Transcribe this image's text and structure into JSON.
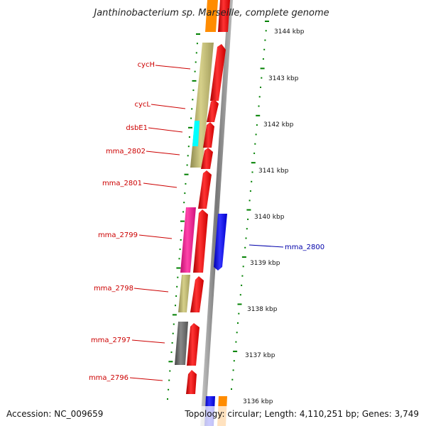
{
  "title": "Janthinobacterium sp. Marseille, complete genome",
  "accession": "Accession: NC_009659",
  "topology": "Topology: circular; Length: 4,110,251 bp; Genes: 3,749",
  "kbp_ticks": [
    "3144 kbp",
    "3143 kbp",
    "3142 kbp",
    "3141 kbp",
    "3140 kbp",
    "3139 kbp",
    "3138 kbp",
    "3137 kbp",
    "3136 kbp"
  ],
  "gene_labels": [
    "cycH",
    "cycL",
    "dsbE1",
    "mma_2802",
    "mma_2801",
    "mma_2799",
    "mma_2798",
    "mma_2797",
    "mma_2796",
    "mma_2800"
  ],
  "colors": {
    "red": "#ff0000",
    "khaki": "#bdb76b",
    "cyan": "#00ffff",
    "magenta": "#ff1493",
    "gray": "#696969",
    "blue": "#0000ff",
    "orange": "#ff8c00",
    "axis": "#808080",
    "dots": "#008000",
    "label_red": "#cc0000",
    "label_blue": "#0000aa"
  }
}
